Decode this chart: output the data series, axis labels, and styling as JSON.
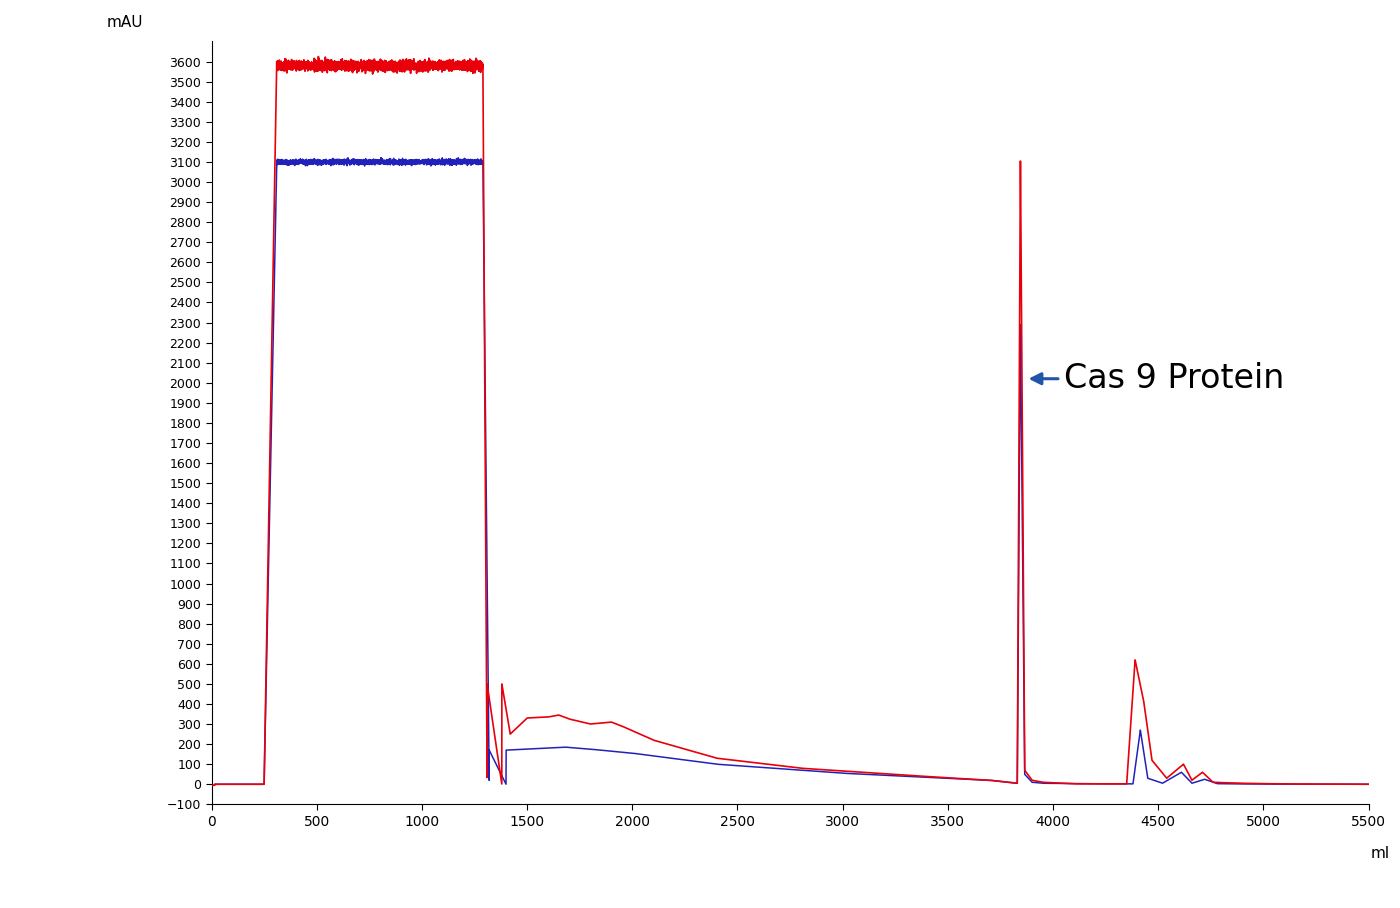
{
  "title": "",
  "ylabel": "mAU",
  "xlabel": "ml",
  "xlim": [
    0,
    5500
  ],
  "ylim": [
    -100,
    3700
  ],
  "yticks": [
    -100,
    0,
    100,
    200,
    300,
    400,
    500,
    600,
    700,
    800,
    900,
    1000,
    1100,
    1200,
    1300,
    1400,
    1500,
    1600,
    1700,
    1800,
    1900,
    2000,
    2100,
    2200,
    2300,
    2400,
    2500,
    2600,
    2700,
    2800,
    2900,
    3000,
    3100,
    3200,
    3300,
    3400,
    3500,
    3600
  ],
  "xticks": [
    0,
    500,
    1000,
    1500,
    2000,
    2500,
    3000,
    3500,
    4000,
    4500,
    5000,
    5500
  ],
  "red_color": "#e8000a",
  "blue_color": "#2222bb",
  "annotation_color": "#2255aa",
  "annotation_text": "Cas 9 Protein",
  "bg_color": "#ffffff",
  "noise_sigma_red": 12,
  "noise_sigma_blue": 6
}
